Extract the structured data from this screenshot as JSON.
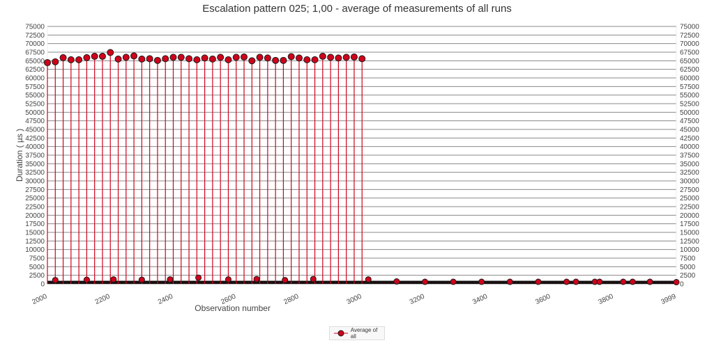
{
  "chart_data": {
    "type": "scatter",
    "title": "Escalation pattern 025; 1,00 - average of measurements of all runs",
    "xlabel": "Observation number",
    "ylabel": "Duration ( µs )",
    "xlim": [
      2000,
      3999
    ],
    "ylim": [
      0,
      75000
    ],
    "x_ticks": [
      "2000",
      "2200",
      "2400",
      "2600",
      "2800",
      "3000",
      "3200",
      "3400",
      "3600",
      "3800",
      "3999"
    ],
    "y_ticks": [
      "0",
      "2500",
      "5000",
      "7500",
      "10000",
      "12500",
      "15000",
      "17500",
      "20000",
      "22500",
      "25000",
      "27500",
      "30000",
      "32500",
      "35000",
      "37500",
      "40000",
      "42500",
      "45000",
      "47500",
      "50000",
      "52500",
      "55000",
      "57500",
      "60000",
      "62500",
      "65000",
      "67500",
      "70000",
      "72500",
      "75000"
    ],
    "grid": true,
    "dual_y_axis": true,
    "legend_position": "bottom",
    "series": [
      {
        "name": "Average of all",
        "color": "#d0021b",
        "marker_stroke": "#1a1a1a",
        "high_points": {
          "x": [
            2000,
            2025,
            2050,
            2075,
            2100,
            2125,
            2150,
            2175,
            2200,
            2225,
            2250,
            2275,
            2300,
            2325,
            2350,
            2375,
            2400,
            2425,
            2450,
            2475,
            2500,
            2525,
            2550,
            2575,
            2600,
            2625,
            2650,
            2675,
            2700,
            2725,
            2750,
            2775,
            2800,
            2825,
            2850,
            2875,
            2900,
            2925,
            2950,
            2975,
            3000
          ],
          "y": [
            64450,
            64700,
            65900,
            65300,
            65300,
            65900,
            66300,
            66300,
            67400,
            65500,
            66000,
            66400,
            65500,
            65600,
            65100,
            65600,
            66000,
            66000,
            65600,
            65300,
            65800,
            65500,
            66000,
            65300,
            66000,
            66100,
            65000,
            66000,
            65800,
            65100,
            65100,
            66200,
            65800,
            65300,
            65300,
            66300,
            66000,
            65800,
            66000,
            66100,
            65600
          ]
        },
        "low_points": {
          "x": [
            2025,
            2125,
            2210,
            2300,
            2390,
            2480,
            2575,
            2665,
            2755,
            2845,
            3020,
            3110,
            3200,
            3290,
            3380,
            3470,
            3560,
            3650,
            3680,
            3740,
            3755,
            3830,
            3860,
            3915,
            3999
          ],
          "y": [
            1100,
            1200,
            1300,
            1200,
            1300,
            1800,
            1300,
            1400,
            1100,
            1400,
            1300,
            700,
            600,
            600,
            600,
            600,
            600,
            600,
            600,
            600,
            600,
            600,
            600,
            600,
            500
          ]
        },
        "baseline_band": {
          "x": [
            2000,
            3999
          ],
          "y": [
            0,
            900
          ]
        }
      }
    ]
  }
}
